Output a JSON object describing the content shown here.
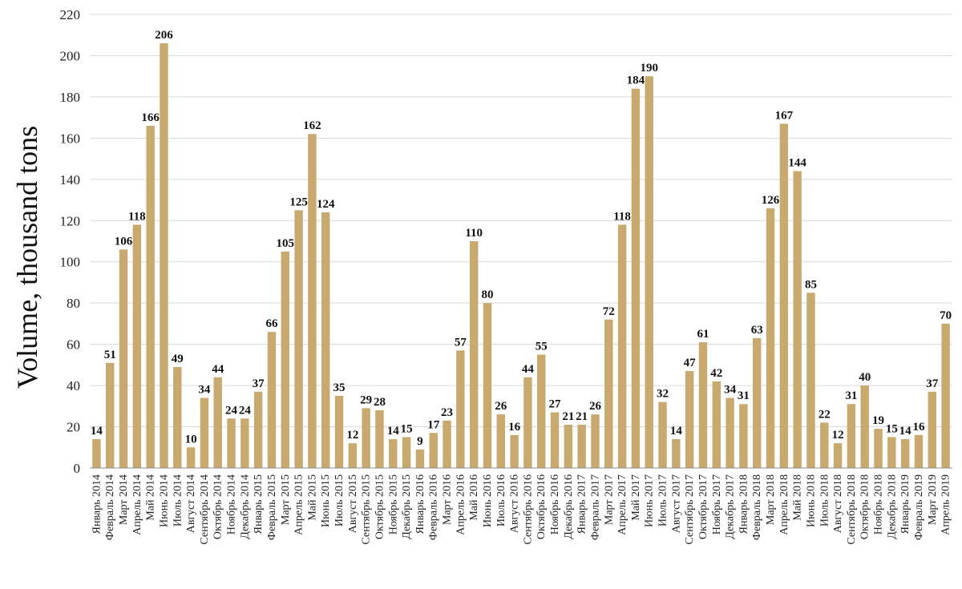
{
  "chart_data": {
    "type": "bar",
    "title": "",
    "xlabel": "",
    "ylabel": "Volume, thousand tons",
    "ylim": [
      0,
      220
    ],
    "yticks": [
      0,
      20,
      40,
      60,
      80,
      100,
      120,
      140,
      160,
      180,
      200,
      220
    ],
    "grid": "horizontal",
    "bar_color": "#c8a96e",
    "categories": [
      "Январь 2014",
      "Февраль 2014",
      "Март 2014",
      "Апрель 2014",
      "Май 2014",
      "Июнь 2014",
      "Июль 2014",
      "Август 2014",
      "Сентябрь 2014",
      "Октябрь 2014",
      "Ноябрь 2014",
      "Декабрь 2014",
      "Январь 2015",
      "Февраль 2015",
      "Март 2015",
      "Апрель 2015",
      "Май 2015",
      "Июнь 2015",
      "Июль 2015",
      "Август 2015",
      "Сентябрь 2015",
      "Октябрь 2015",
      "Ноябрь 2015",
      "Декабрь 2015",
      "Январь 2016",
      "Февраль 2016",
      "Март 2016",
      "Апрель 2016",
      "Май 2016",
      "Июнь 2016",
      "Июль 2016",
      "Август 2016",
      "Сентябрь 2016",
      "Октябрь 2016",
      "Ноябрь 2016",
      "Декабрь 2016",
      "Январь 2017",
      "Февраль 2017",
      "Март 2017",
      "Апрель 2017",
      "Май 2017",
      "Июнь 2017",
      "Июль 2017",
      "Август 2017",
      "Сентябрь 2017",
      "Октябрь 2017",
      "Ноябрь 2017",
      "Декабрь 2017",
      "Январь 2018",
      "Февраль 2018",
      "Март 2018",
      "Апрель 2018",
      "Май 2018",
      "Июнь 2018",
      "Июль 2018",
      "Август 2018",
      "Сентябрь 2018",
      "Октябрь 2018",
      "Ноябрь 2018",
      "Декабрь 2018",
      "Январь 2019",
      "Февраль 2019",
      "Март 2019",
      "Апрель 2019"
    ],
    "values": [
      14,
      51,
      106,
      118,
      166,
      206,
      49,
      10,
      34,
      44,
      24,
      24,
      37,
      66,
      105,
      125,
      162,
      124,
      35,
      12,
      29,
      28,
      14,
      15,
      9,
      17,
      23,
      57,
      110,
      80,
      26,
      16,
      44,
      55,
      27,
      21,
      21,
      26,
      72,
      118,
      184,
      190,
      32,
      14,
      47,
      61,
      42,
      34,
      31,
      63,
      126,
      167,
      144,
      85,
      22,
      12,
      31,
      40,
      19,
      15,
      14,
      16,
      37,
      70
    ]
  }
}
